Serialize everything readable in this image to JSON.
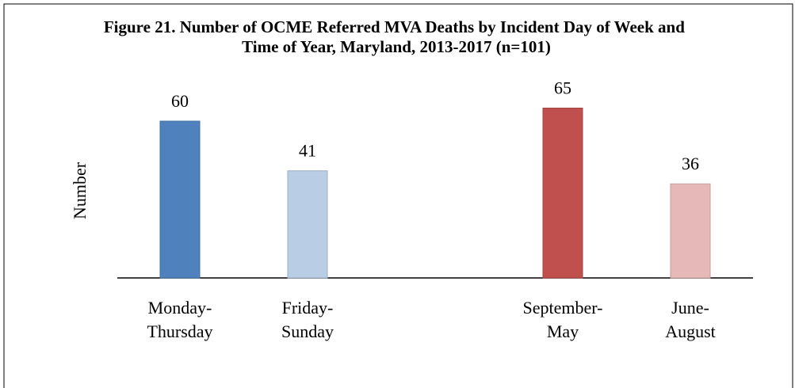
{
  "chart_data": {
    "type": "bar",
    "title": "Figure 21. Number of OCME Referred MVA Deaths by Incident Day of Week and Time of Year, Maryland, 2013-2017 (n=101)",
    "ylabel": "Number",
    "categories": [
      "Monday-Thursday",
      "Friday-Sunday",
      "September-May",
      "June-August"
    ],
    "values": [
      60,
      41,
      65,
      36
    ],
    "colors": [
      "#4f81bd",
      "#b9cde5",
      "#c0504d",
      "#e6b9b8"
    ],
    "ylim": [
      0,
      70
    ]
  }
}
